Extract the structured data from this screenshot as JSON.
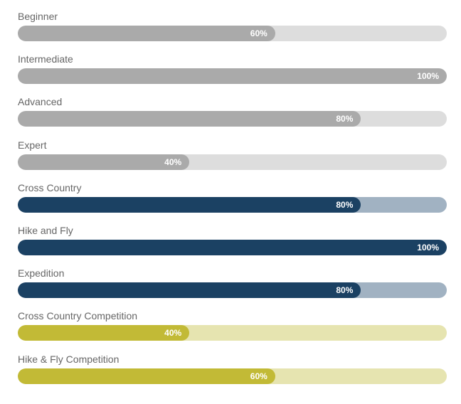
{
  "colors": {
    "grey": {
      "fill": "#aaaaaa",
      "track": "#dddddd"
    },
    "navy": {
      "fill": "#1b4163",
      "track": "#a1b2c2"
    },
    "olive": {
      "fill": "#c2ba36",
      "track": "#e6e4b0"
    }
  },
  "skills": [
    {
      "label": "Beginner",
      "value": 60,
      "value_label": "60%",
      "theme": "grey"
    },
    {
      "label": "Intermediate",
      "value": 100,
      "value_label": "100%",
      "theme": "grey"
    },
    {
      "label": "Advanced",
      "value": 80,
      "value_label": "80%",
      "theme": "grey"
    },
    {
      "label": "Expert",
      "value": 40,
      "value_label": "40%",
      "theme": "grey"
    },
    {
      "label": "Cross Country",
      "value": 80,
      "value_label": "80%",
      "theme": "navy"
    },
    {
      "label": "Hike and Fly",
      "value": 100,
      "value_label": "100%",
      "theme": "navy"
    },
    {
      "label": "Expedition",
      "value": 80,
      "value_label": "80%",
      "theme": "navy"
    },
    {
      "label": "Cross Country Competition",
      "value": 40,
      "value_label": "40%",
      "theme": "olive"
    },
    {
      "label": "Hike & Fly Competition",
      "value": 60,
      "value_label": "60%",
      "theme": "olive"
    }
  ]
}
